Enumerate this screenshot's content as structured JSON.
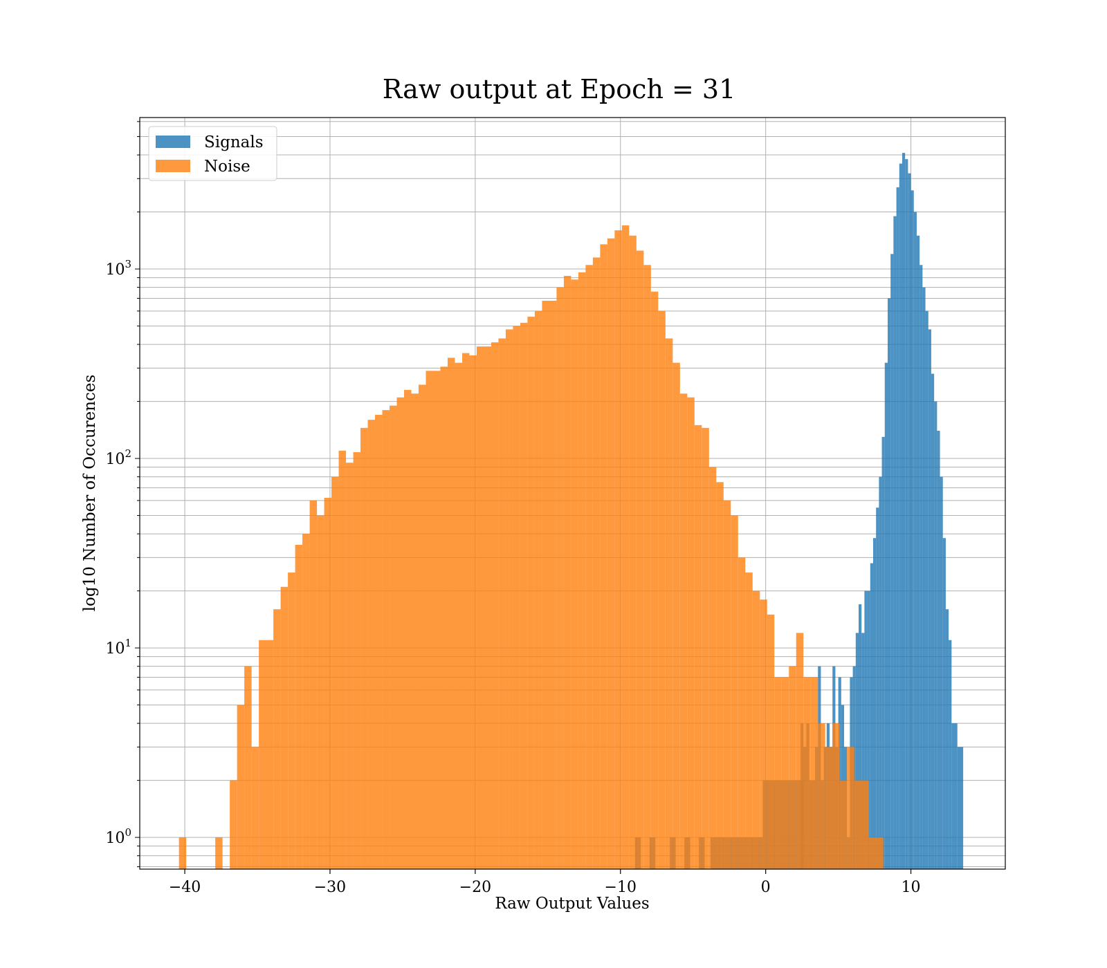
{
  "chart_data": {
    "type": "bar",
    "title": "Raw output at Epoch = 31",
    "xlabel": "Raw Output Values",
    "ylabel": "log10 Number of Occurences",
    "y_scale": "log",
    "xlim": [
      -43.1,
      16.5
    ],
    "ylim": [
      0.68,
      6300
    ],
    "grid": true,
    "legend_position": "upper-left",
    "x_ticks": [
      {
        "value": -40,
        "label": "−40"
      },
      {
        "value": -30,
        "label": "−30"
      },
      {
        "value": -20,
        "label": "−20"
      },
      {
        "value": -10,
        "label": "−10"
      },
      {
        "value": 0,
        "label": "0"
      },
      {
        "value": 10,
        "label": "10"
      }
    ],
    "y_ticks": [
      {
        "value": 1,
        "base": "10",
        "exp": "0"
      },
      {
        "value": 10,
        "base": "10",
        "exp": "1"
      },
      {
        "value": 100,
        "base": "10",
        "exp": "2"
      },
      {
        "value": 1000,
        "base": "10",
        "exp": "3"
      }
    ],
    "series": [
      {
        "name": "Signals",
        "color": "#1f77b4",
        "opacity": 0.8,
        "bins": [
          [
            -9.0,
            -8.6,
            1
          ],
          [
            -8.0,
            -7.6,
            1
          ],
          [
            -6.6,
            -6.2,
            1
          ],
          [
            -5.6,
            -5.2,
            1
          ],
          [
            -4.6,
            -4.2,
            1
          ],
          [
            -3.8,
            -3.4,
            1
          ],
          [
            -3.4,
            -3.0,
            1
          ],
          [
            -3.0,
            -2.6,
            1
          ],
          [
            -2.6,
            -0.2,
            1
          ],
          [
            -0.2,
            2.6,
            2
          ],
          [
            2.4,
            2.6,
            4
          ],
          [
            2.6,
            2.8,
            3
          ],
          [
            2.8,
            3.0,
            4
          ],
          [
            3.0,
            3.4,
            2
          ],
          [
            3.4,
            3.6,
            3
          ],
          [
            3.6,
            3.8,
            8
          ],
          [
            3.8,
            4.0,
            2
          ],
          [
            4.0,
            4.2,
            3
          ],
          [
            4.2,
            4.4,
            4
          ],
          [
            4.4,
            4.6,
            3
          ],
          [
            4.6,
            4.8,
            8
          ],
          [
            4.8,
            5.0,
            3
          ],
          [
            5.0,
            5.2,
            7
          ],
          [
            5.2,
            5.4,
            5
          ],
          [
            5.4,
            5.6,
            3
          ],
          [
            5.6,
            5.8,
            1
          ],
          [
            5.8,
            6.0,
            7
          ],
          [
            6.0,
            6.2,
            8
          ],
          [
            6.2,
            6.4,
            12
          ],
          [
            6.4,
            6.6,
            17
          ],
          [
            6.6,
            6.8,
            12
          ],
          [
            6.8,
            7.0,
            20
          ],
          [
            7.0,
            7.2,
            20
          ],
          [
            7.2,
            7.4,
            28
          ],
          [
            7.4,
            7.6,
            38
          ],
          [
            7.6,
            7.8,
            55
          ],
          [
            7.8,
            8.0,
            80
          ],
          [
            8.0,
            8.2,
            130
          ],
          [
            8.2,
            8.4,
            320
          ],
          [
            8.4,
            8.6,
            700
          ],
          [
            8.6,
            8.8,
            1200
          ],
          [
            8.8,
            9.0,
            1900
          ],
          [
            9.0,
            9.2,
            2700
          ],
          [
            9.2,
            9.4,
            3600
          ],
          [
            9.4,
            9.6,
            4100
          ],
          [
            9.6,
            9.8,
            3800
          ],
          [
            9.8,
            10.0,
            3200
          ],
          [
            10.0,
            10.2,
            2600
          ],
          [
            10.2,
            10.4,
            2000
          ],
          [
            10.4,
            10.6,
            1500
          ],
          [
            10.6,
            10.8,
            1050
          ],
          [
            10.8,
            11.0,
            800
          ],
          [
            11.0,
            11.2,
            600
          ],
          [
            11.2,
            11.4,
            480
          ],
          [
            11.4,
            11.6,
            280
          ],
          [
            11.6,
            11.8,
            200
          ],
          [
            11.8,
            12.0,
            140
          ],
          [
            12.0,
            12.2,
            80
          ],
          [
            12.2,
            12.4,
            38
          ],
          [
            12.4,
            12.6,
            16
          ],
          [
            12.6,
            12.8,
            11
          ],
          [
            12.8,
            13.2,
            4
          ],
          [
            13.2,
            13.6,
            3
          ]
        ]
      },
      {
        "name": "Noise",
        "color": "#ff7f0e",
        "opacity": 0.8,
        "bins": [
          [
            -40.4,
            -39.9,
            1
          ],
          [
            -37.9,
            -37.4,
            1
          ],
          [
            -36.9,
            -36.4,
            2
          ],
          [
            -36.4,
            -35.9,
            5
          ],
          [
            -35.9,
            -35.4,
            8
          ],
          [
            -35.4,
            -34.9,
            3
          ],
          [
            -34.9,
            -33.9,
            11
          ],
          [
            -33.9,
            -33.4,
            16
          ],
          [
            -33.4,
            -32.9,
            21
          ],
          [
            -32.9,
            -32.4,
            25
          ],
          [
            -32.4,
            -31.9,
            35
          ],
          [
            -31.9,
            -31.4,
            40
          ],
          [
            -31.4,
            -30.9,
            60
          ],
          [
            -30.9,
            -30.4,
            50
          ],
          [
            -30.4,
            -29.9,
            62
          ],
          [
            -29.9,
            -29.4,
            80
          ],
          [
            -29.4,
            -28.9,
            110
          ],
          [
            -28.9,
            -28.4,
            95
          ],
          [
            -28.4,
            -27.9,
            108
          ],
          [
            -27.9,
            -27.4,
            145
          ],
          [
            -27.4,
            -26.9,
            160
          ],
          [
            -26.9,
            -26.4,
            170
          ],
          [
            -26.4,
            -25.9,
            180
          ],
          [
            -25.9,
            -25.4,
            190
          ],
          [
            -25.4,
            -24.9,
            210
          ],
          [
            -24.9,
            -24.4,
            230
          ],
          [
            -24.4,
            -23.9,
            220
          ],
          [
            -23.9,
            -23.4,
            245
          ],
          [
            -23.4,
            -22.4,
            290
          ],
          [
            -22.4,
            -21.9,
            305
          ],
          [
            -21.9,
            -21.4,
            340
          ],
          [
            -21.4,
            -20.9,
            320
          ],
          [
            -20.9,
            -20.4,
            360
          ],
          [
            -20.4,
            -19.9,
            350
          ],
          [
            -19.9,
            -18.9,
            390
          ],
          [
            -18.9,
            -18.4,
            410
          ],
          [
            -18.4,
            -17.9,
            430
          ],
          [
            -17.9,
            -17.4,
            480
          ],
          [
            -17.4,
            -16.9,
            500
          ],
          [
            -16.9,
            -16.4,
            520
          ],
          [
            -16.4,
            -15.9,
            560
          ],
          [
            -15.9,
            -15.4,
            600
          ],
          [
            -15.4,
            -14.4,
            680
          ],
          [
            -14.4,
            -13.9,
            800
          ],
          [
            -13.9,
            -13.4,
            920
          ],
          [
            -13.4,
            -12.9,
            880
          ],
          [
            -12.9,
            -12.4,
            960
          ],
          [
            -12.4,
            -11.9,
            1050
          ],
          [
            -11.9,
            -11.4,
            1150
          ],
          [
            -11.4,
            -10.9,
            1350
          ],
          [
            -10.9,
            -10.4,
            1450
          ],
          [
            -10.4,
            -9.9,
            1600
          ],
          [
            -9.9,
            -9.4,
            1700
          ],
          [
            -9.4,
            -8.9,
            1500
          ],
          [
            -8.9,
            -8.4,
            1250
          ],
          [
            -8.4,
            -7.9,
            1050
          ],
          [
            -7.9,
            -7.4,
            760
          ],
          [
            -7.4,
            -6.9,
            600
          ],
          [
            -6.9,
            -6.4,
            430
          ],
          [
            -6.4,
            -5.9,
            320
          ],
          [
            -5.9,
            -5.4,
            220
          ],
          [
            -5.4,
            -4.9,
            210
          ],
          [
            -4.9,
            -4.4,
            150
          ],
          [
            -4.4,
            -3.9,
            145
          ],
          [
            -3.9,
            -3.4,
            90
          ],
          [
            -3.4,
            -2.9,
            75
          ],
          [
            -2.9,
            -2.4,
            60
          ],
          [
            -2.4,
            -1.9,
            50
          ],
          [
            -1.9,
            -1.4,
            30
          ],
          [
            -1.4,
            -0.9,
            25
          ],
          [
            -0.9,
            -0.4,
            20
          ],
          [
            -0.4,
            0.1,
            18
          ],
          [
            0.1,
            0.6,
            15
          ],
          [
            0.6,
            1.1,
            7
          ],
          [
            1.1,
            1.6,
            7
          ],
          [
            1.6,
            2.1,
            8
          ],
          [
            2.1,
            2.6,
            12
          ],
          [
            2.6,
            3.1,
            7
          ],
          [
            3.1,
            3.6,
            7
          ],
          [
            3.6,
            4.1,
            4
          ],
          [
            4.1,
            4.6,
            3
          ],
          [
            4.6,
            5.1,
            4
          ],
          [
            5.1,
            5.6,
            2
          ],
          [
            5.6,
            6.1,
            3
          ],
          [
            6.1,
            7.1,
            2
          ],
          [
            7.1,
            8.1,
            1
          ]
        ]
      }
    ]
  }
}
